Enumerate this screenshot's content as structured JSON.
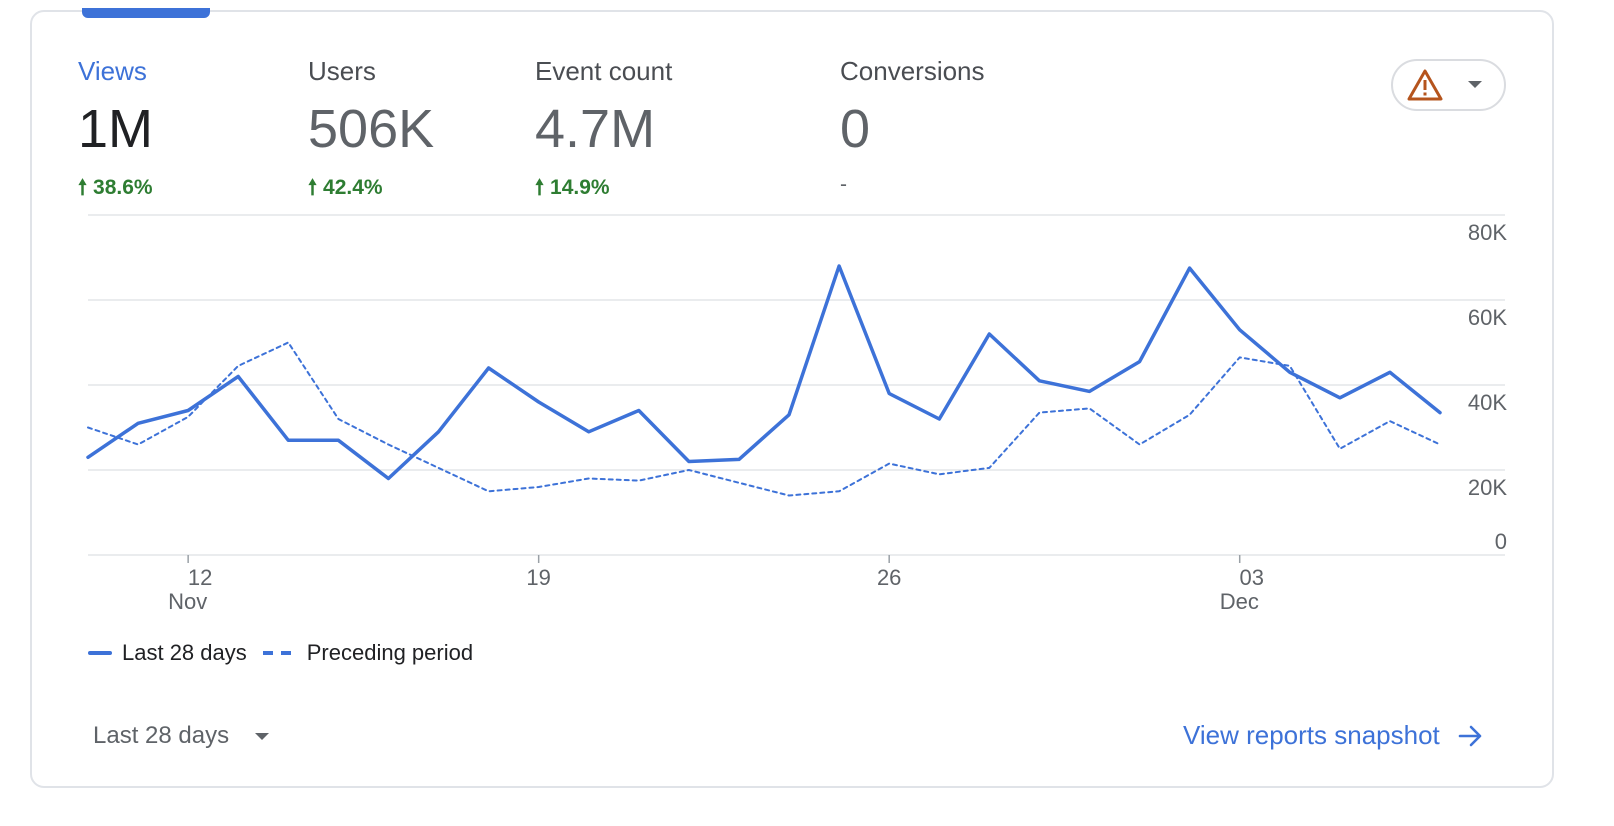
{
  "metrics": [
    {
      "label": "Views",
      "value": "1M",
      "change": "38.6%",
      "trend": "up",
      "active": true
    },
    {
      "label": "Users",
      "value": "506K",
      "change": "42.4%",
      "trend": "up",
      "active": false
    },
    {
      "label": "Event count",
      "value": "4.7M",
      "change": "14.9%",
      "trend": "up",
      "active": false
    },
    {
      "label": "Conversions",
      "value": "0",
      "change": "-",
      "trend": "none",
      "active": false
    }
  ],
  "alert_button": {
    "icon": "warning-icon",
    "dropdown_icon": "caret-down-icon"
  },
  "colors": {
    "accent": "#3d72d8",
    "positive": "#2e7d32",
    "warning": "#b5541d",
    "grid": "#e3e5e8"
  },
  "chart_data": {
    "type": "line",
    "x": [
      "Nov 10",
      "Nov 11",
      "Nov 12",
      "Nov 13",
      "Nov 14",
      "Nov 15",
      "Nov 16",
      "Nov 17",
      "Nov 18",
      "Nov 19",
      "Nov 20",
      "Nov 21",
      "Nov 22",
      "Nov 23",
      "Nov 24",
      "Nov 25",
      "Nov 26",
      "Nov 27",
      "Nov 28",
      "Nov 29",
      "Nov 30",
      "Dec 1",
      "Dec 2",
      "Dec 3",
      "Dec 4",
      "Dec 5",
      "Dec 6",
      "Dec 7"
    ],
    "x_ticks": [
      {
        "index": 2,
        "day": "12",
        "month": "Nov"
      },
      {
        "index": 9,
        "day": "19",
        "month": ""
      },
      {
        "index": 16,
        "day": "26",
        "month": ""
      },
      {
        "index": 23,
        "day": "03",
        "month": "Dec"
      }
    ],
    "y_ticks": [
      "0",
      "20K",
      "40K",
      "60K",
      "80K"
    ],
    "ylim": [
      0,
      80000
    ],
    "grid": true,
    "series": [
      {
        "name": "Last 28 days",
        "style": "solid",
        "values": [
          23000,
          31000,
          34000,
          42000,
          27000,
          27000,
          18000,
          29000,
          44000,
          36000,
          29000,
          34000,
          22000,
          22500,
          33000,
          68000,
          38000,
          32000,
          52000,
          41000,
          38500,
          45500,
          67500,
          53000,
          43000,
          37000,
          43000,
          33500
        ]
      },
      {
        "name": "Preceding period",
        "style": "dashed",
        "values": [
          30000,
          26000,
          32500,
          44500,
          50000,
          32000,
          26000,
          20500,
          15000,
          16000,
          18000,
          17500,
          20000,
          17000,
          14000,
          15000,
          21500,
          19000,
          20500,
          33500,
          34500,
          26000,
          33000,
          46500,
          44500,
          25000,
          31500,
          26000
        ]
      }
    ]
  },
  "legend": [
    "Last 28 days",
    "Preceding period"
  ],
  "footer": {
    "date_range": "Last 28 days",
    "view_link": "View reports snapshot"
  }
}
